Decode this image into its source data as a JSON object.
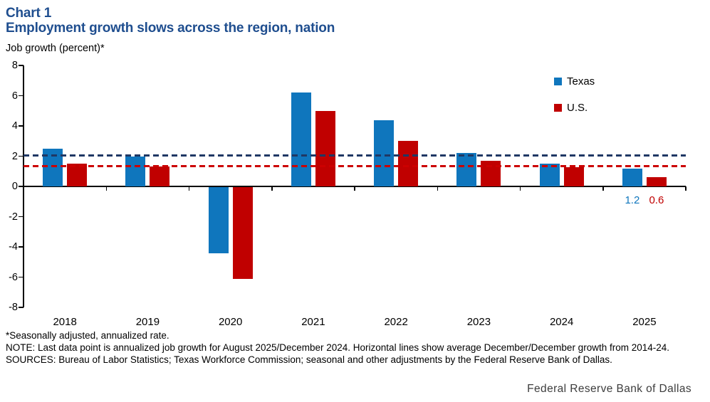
{
  "header": {
    "chart_label": "Chart 1",
    "title": "Employment growth slows across the region, nation"
  },
  "chart_data": {
    "type": "bar",
    "title": "Employment growth slows across the region, nation",
    "ylabel": "Job growth (percent)*",
    "categories": [
      "2018",
      "2019",
      "2020",
      "2021",
      "2022",
      "2023",
      "2024",
      "2025"
    ],
    "series": [
      {
        "name": "Texas",
        "color": "#0f76bd",
        "values": [
          2.5,
          2.0,
          -4.4,
          6.2,
          4.4,
          2.2,
          1.5,
          1.2
        ]
      },
      {
        "name": "U.S.",
        "color": "#c00000",
        "values": [
          1.5,
          1.3,
          -6.1,
          5.0,
          3.0,
          1.7,
          1.25,
          0.6
        ]
      }
    ],
    "reference_lines": [
      {
        "name": "Texas average December/December growth 2014-24",
        "value": 2.07,
        "color": "#1f3864",
        "style": "dashed"
      },
      {
        "name": "U.S. average December/December growth 2014-24",
        "value": 1.36,
        "color": "#cc0000",
        "style": "dashed"
      }
    ],
    "last_point_labels": [
      {
        "series": "Texas",
        "text": "1.2",
        "color": "#0f76bd"
      },
      {
        "series": "U.S.",
        "text": "0.6",
        "color": "#c00000"
      }
    ],
    "ylim": [
      -8,
      8
    ],
    "ytick_interval": 2,
    "grid": false,
    "legend_position": "upper right"
  },
  "footnotes": {
    "asterisk": "*Seasonally adjusted, annualized rate.",
    "note": "NOTE: Last data point is annualized job growth for August 2025/December 2024. Horizontal lines show average December/December growth from 2014-24.",
    "sources": "SOURCES: Bureau of Labor Statistics; Texas Workforce Commission; seasonal and other adjustments by the Federal Reserve Bank of Dallas."
  },
  "branding": {
    "org": "Federal Reserve Bank of Dallas"
  },
  "colors": {
    "title_blue": "#1f4e8f",
    "texas_blue": "#0f76bd",
    "us_red": "#c00000",
    "texas_dash": "#1f3864",
    "us_dash": "#cc0000"
  }
}
